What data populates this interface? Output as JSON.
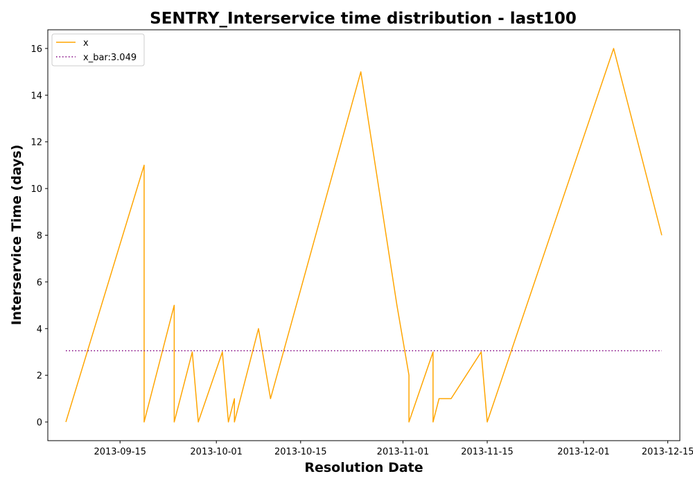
{
  "chart_data": {
    "type": "line",
    "title": "SENTRY_Interservice time distribution - last100",
    "xlabel": "Resolution Date",
    "ylabel": "Interservice Time (days)",
    "x_tick_labels": [
      "2013-09-15",
      "2013-10-01",
      "2013-10-15",
      "2013-11-01",
      "2013-11-15",
      "2013-12-01",
      "2013-12-15"
    ],
    "y_tick_labels": [
      "0",
      "2",
      "4",
      "6",
      "8",
      "10",
      "12",
      "14",
      "16"
    ],
    "xlim": [
      "2013-09-03",
      "2013-12-17"
    ],
    "ylim": [
      -0.8,
      16.8
    ],
    "grid": false,
    "legend_position": "top-left",
    "series": [
      {
        "name": "x",
        "color": "#FFA500",
        "style": "solid",
        "points": [
          [
            "2013-09-06",
            0
          ],
          [
            "2013-09-19",
            11
          ],
          [
            "2013-09-19",
            0
          ],
          [
            "2013-09-24",
            5
          ],
          [
            "2013-09-24",
            0
          ],
          [
            "2013-09-27",
            3
          ],
          [
            "2013-09-28",
            0
          ],
          [
            "2013-10-02",
            3
          ],
          [
            "2013-10-03",
            0
          ],
          [
            "2013-10-04",
            1
          ],
          [
            "2013-10-04",
            0
          ],
          [
            "2013-10-08",
            4
          ],
          [
            "2013-10-10",
            1
          ],
          [
            "2013-10-25",
            15
          ],
          [
            "2013-10-31",
            5
          ],
          [
            "2013-11-02",
            2
          ],
          [
            "2013-11-02",
            0
          ],
          [
            "2013-11-06",
            3
          ],
          [
            "2013-11-06",
            0
          ],
          [
            "2013-11-07",
            1
          ],
          [
            "2013-11-09",
            1
          ],
          [
            "2013-11-14",
            3
          ],
          [
            "2013-11-15",
            0
          ],
          [
            "2013-12-06",
            16
          ],
          [
            "2013-12-14",
            8
          ]
        ]
      },
      {
        "name": "x_bar:3.049",
        "color": "#800080",
        "style": "dotted",
        "points": [
          [
            "2013-09-06",
            3.049
          ],
          [
            "2013-12-14",
            3.049
          ]
        ]
      }
    ]
  }
}
